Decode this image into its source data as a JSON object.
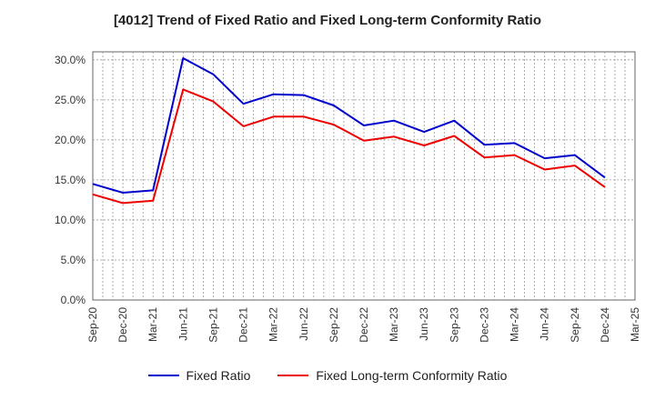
{
  "chart_data": {
    "type": "line",
    "title": "[4012]  Trend of Fixed Ratio and Fixed Long-term Conformity Ratio",
    "x": [
      "Sep-20",
      "Dec-20",
      "Mar-21",
      "Jun-21",
      "Sep-21",
      "Dec-21",
      "Mar-22",
      "Jun-22",
      "Sep-22",
      "Dec-22",
      "Mar-23",
      "Jun-23",
      "Sep-23",
      "Dec-23",
      "Mar-24",
      "Jun-24",
      "Sep-24",
      "Dec-24",
      "Mar-25"
    ],
    "series": [
      {
        "name": "Fixed Ratio",
        "color": "#0000cc",
        "values": [
          14.5,
          13.4,
          13.7,
          30.2,
          28.2,
          24.5,
          25.7,
          25.6,
          24.3,
          21.8,
          22.4,
          21.0,
          22.4,
          19.4,
          19.6,
          17.7,
          18.1,
          15.3,
          null
        ]
      },
      {
        "name": "Fixed Long-term Conformity Ratio",
        "color": "#ee0000",
        "values": [
          13.2,
          12.1,
          12.4,
          26.3,
          24.8,
          21.7,
          22.9,
          22.9,
          21.9,
          19.9,
          20.4,
          19.3,
          20.5,
          17.8,
          18.1,
          16.3,
          16.8,
          14.1,
          null
        ]
      }
    ],
    "y_ticks": [
      "0.0%",
      "5.0%",
      "10.0%",
      "15.0%",
      "20.0%",
      "25.0%",
      "30.0%"
    ],
    "ylim": [
      0,
      31
    ],
    "grid": true,
    "legend": "bottom-center"
  }
}
